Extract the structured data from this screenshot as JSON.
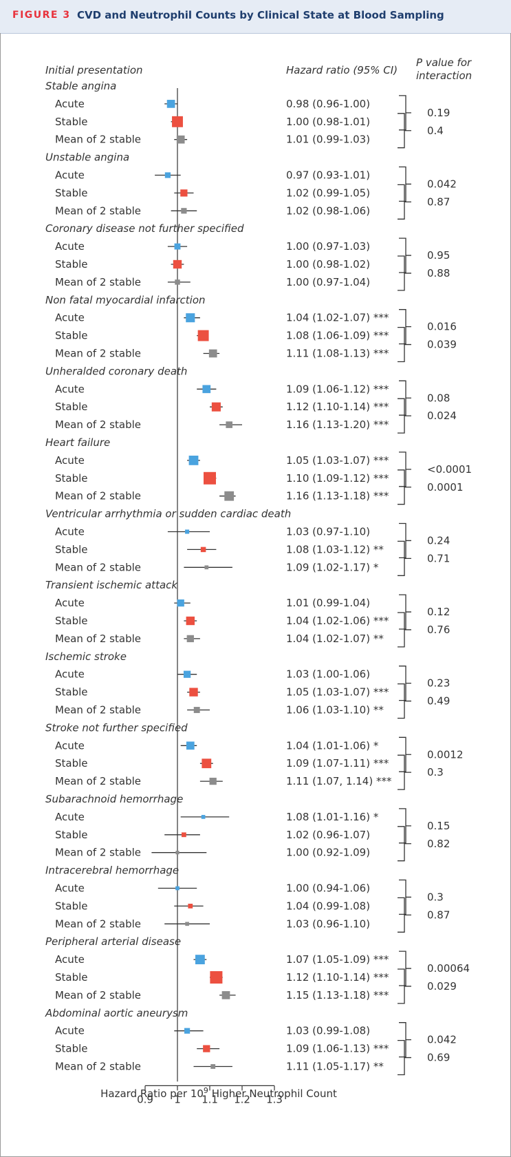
{
  "figure": {
    "label": "FIGURE 3",
    "title": "CVD and Neutrophil Counts by Clinical State at Blood Sampling"
  },
  "colors": {
    "acute": "#4aa3df",
    "stable": "#ec5040",
    "mean": "#8c8c8c",
    "line": "#333333",
    "header_bg": "#e6ecf5",
    "label_red": "#e8323c",
    "title_blue": "#1f3e6e"
  },
  "chart_data": {
    "type": "forest",
    "title": "CVD and Neutrophil Counts by Clinical State at Blood Sampling",
    "xlabel_prefix": "Hazard Ratio per 10",
    "xlabel_sup": "9",
    "xlabel_suffix": " Higher Neutrophil Count",
    "xlim": [
      0.9,
      1.3
    ],
    "reference_line": 1.0,
    "xticks": [
      0.9,
      1,
      1.1,
      1.2,
      1.3
    ],
    "xtick_labels": [
      "0.9",
      "1",
      "1.1",
      "1.2",
      "1.3"
    ],
    "column_headers": {
      "presentation": "Initial presentation",
      "hr": "Hazard ratio (95% CI)",
      "p_line1": "P value for",
      "p_line2": "interaction"
    },
    "groups": [
      {
        "name": "Stable angina",
        "rows": [
          {
            "label": "Acute",
            "state": "acute",
            "hr": 0.98,
            "lo": 0.96,
            "hi": 1.0,
            "text": "0.98 (0.96-1.00)",
            "weight": 0.55
          },
          {
            "label": "Stable",
            "state": "stable",
            "hr": 1.0,
            "lo": 0.98,
            "hi": 1.01,
            "text": "1.00 (0.98-1.01)",
            "weight": 0.85
          },
          {
            "label": "Mean of 2 stable",
            "state": "mean",
            "hr": 1.01,
            "lo": 0.99,
            "hi": 1.03,
            "text": "1.01 (0.99-1.03)",
            "weight": 0.55
          }
        ],
        "p_values": [
          "0.19",
          "0.4"
        ]
      },
      {
        "name": "Unstable angina",
        "rows": [
          {
            "label": "Acute",
            "state": "acute",
            "hr": 0.97,
            "lo": 0.93,
            "hi": 1.01,
            "text": "0.97 (0.93-1.01)",
            "weight": 0.3
          },
          {
            "label": "Stable",
            "state": "stable",
            "hr": 1.02,
            "lo": 0.99,
            "hi": 1.05,
            "text": "1.02 (0.99-1.05)",
            "weight": 0.45
          },
          {
            "label": "Mean of 2 stable",
            "state": "mean",
            "hr": 1.02,
            "lo": 0.98,
            "hi": 1.06,
            "text": "1.02 (0.98-1.06)",
            "weight": 0.3
          }
        ],
        "p_values": [
          "0.042",
          "0.87"
        ]
      },
      {
        "name": "Coronary disease not further specified",
        "rows": [
          {
            "label": "Acute",
            "state": "acute",
            "hr": 1.0,
            "lo": 0.97,
            "hi": 1.03,
            "text": "1.00 (0.97-1.03)",
            "weight": 0.35
          },
          {
            "label": "Stable",
            "state": "stable",
            "hr": 1.0,
            "lo": 0.98,
            "hi": 1.02,
            "text": "1.00 (0.98-1.02)",
            "weight": 0.6
          },
          {
            "label": "Mean of 2 stable",
            "state": "mean",
            "hr": 1.0,
            "lo": 0.97,
            "hi": 1.04,
            "text": "1.00 (0.97-1.04)",
            "weight": 0.25
          }
        ],
        "p_values": [
          "0.95",
          "0.88"
        ]
      },
      {
        "name": "Non fatal myocardial infarction",
        "rows": [
          {
            "label": "Acute",
            "state": "acute",
            "hr": 1.04,
            "lo": 1.02,
            "hi": 1.07,
            "text": "1.04 (1.02-1.07) ***",
            "weight": 0.65
          },
          {
            "label": "Stable",
            "state": "stable",
            "hr": 1.08,
            "lo": 1.06,
            "hi": 1.09,
            "text": "1.08 (1.06-1.09) ***",
            "weight": 0.85
          },
          {
            "label": "Mean of 2 stable",
            "state": "mean",
            "hr": 1.11,
            "lo": 1.08,
            "hi": 1.13,
            "text": "1.11 (1.08-1.13) ***",
            "weight": 0.55
          }
        ],
        "p_values": [
          "0.016",
          "0.039"
        ]
      },
      {
        "name": "Unheralded coronary death",
        "rows": [
          {
            "label": "Acute",
            "state": "acute",
            "hr": 1.09,
            "lo": 1.06,
            "hi": 1.12,
            "text": "1.09 (1.06-1.12) ***",
            "weight": 0.55
          },
          {
            "label": "Stable",
            "state": "stable",
            "hr": 1.12,
            "lo": 1.1,
            "hi": 1.14,
            "text": "1.12 (1.10-1.14) ***",
            "weight": 0.65
          },
          {
            "label": "Mean of 2 stable",
            "state": "mean",
            "hr": 1.16,
            "lo": 1.13,
            "hi": 1.2,
            "text": "1.16 (1.13-1.20) ***",
            "weight": 0.4
          }
        ],
        "p_values": [
          "0.08",
          "0.024"
        ]
      },
      {
        "name": "Heart failure",
        "rows": [
          {
            "label": "Acute",
            "state": "acute",
            "hr": 1.05,
            "lo": 1.03,
            "hi": 1.07,
            "text": "1.05 (1.03-1.07) ***",
            "weight": 0.7
          },
          {
            "label": "Stable",
            "state": "stable",
            "hr": 1.1,
            "lo": 1.09,
            "hi": 1.12,
            "text": "1.10 (1.09-1.12) ***",
            "weight": 1.0
          },
          {
            "label": "Mean of 2 stable",
            "state": "mean",
            "hr": 1.16,
            "lo": 1.13,
            "hi": 1.18,
            "text": "1.16 (1.13-1.18) ***",
            "weight": 0.7
          }
        ],
        "p_values": [
          "<0.0001",
          "0.0001"
        ]
      },
      {
        "name": "Ventricular arrhythmia or sudden cardiac death",
        "rows": [
          {
            "label": "Acute",
            "state": "acute",
            "hr": 1.03,
            "lo": 0.97,
            "hi": 1.1,
            "text": "1.03 (0.97-1.10)",
            "weight": 0.15
          },
          {
            "label": "Stable",
            "state": "stable",
            "hr": 1.08,
            "lo": 1.03,
            "hi": 1.12,
            "text": "1.08 (1.03-1.12) **",
            "weight": 0.25
          },
          {
            "label": "Mean of 2 stable",
            "state": "mean",
            "hr": 1.09,
            "lo": 1.02,
            "hi": 1.17,
            "text": "1.09 (1.02-1.17) *",
            "weight": 0.12
          }
        ],
        "p_values": [
          "0.24",
          "0.71"
        ]
      },
      {
        "name": "Transient ischemic attack",
        "rows": [
          {
            "label": "Acute",
            "state": "acute",
            "hr": 1.01,
            "lo": 0.99,
            "hi": 1.04,
            "text": "1.01 (0.99-1.04)",
            "weight": 0.45
          },
          {
            "label": "Stable",
            "state": "stable",
            "hr": 1.04,
            "lo": 1.02,
            "hi": 1.06,
            "text": "1.04 (1.02-1.06) ***",
            "weight": 0.6
          },
          {
            "label": "Mean of 2 stable",
            "state": "mean",
            "hr": 1.04,
            "lo": 1.02,
            "hi": 1.07,
            "text": "1.04 (1.02-1.07) **",
            "weight": 0.45
          }
        ],
        "p_values": [
          "0.12",
          "0.76"
        ]
      },
      {
        "name": "Ischemic stroke",
        "rows": [
          {
            "label": "Acute",
            "state": "acute",
            "hr": 1.03,
            "lo": 1.0,
            "hi": 1.06,
            "text": "1.03 (1.00-1.06)",
            "weight": 0.45
          },
          {
            "label": "Stable",
            "state": "stable",
            "hr": 1.05,
            "lo": 1.03,
            "hi": 1.07,
            "text": "1.05 (1.03-1.07) ***",
            "weight": 0.6
          },
          {
            "label": "Mean of 2 stable",
            "state": "mean",
            "hr": 1.06,
            "lo": 1.03,
            "hi": 1.1,
            "text": "1.06 (1.03-1.10) **",
            "weight": 0.35
          }
        ],
        "p_values": [
          "0.23",
          "0.49"
        ]
      },
      {
        "name": "Stroke not further specified",
        "rows": [
          {
            "label": "Acute",
            "state": "acute",
            "hr": 1.04,
            "lo": 1.01,
            "hi": 1.06,
            "text": "1.04 (1.01-1.06) *",
            "weight": 0.55
          },
          {
            "label": "Stable",
            "state": "stable",
            "hr": 1.09,
            "lo": 1.07,
            "hi": 1.11,
            "text": "1.09 (1.07-1.11) ***",
            "weight": 0.7
          },
          {
            "label": "Mean of 2 stable",
            "state": "mean",
            "hr": 1.11,
            "lo": 1.07,
            "hi": 1.14,
            "text": "1.11 (1.07, 1.14) ***",
            "weight": 0.45
          }
        ],
        "p_values": [
          "0.0012",
          "0.3"
        ]
      },
      {
        "name": "Subarachnoid hemorrhage",
        "rows": [
          {
            "label": "Acute",
            "state": "acute",
            "hr": 1.08,
            "lo": 1.01,
            "hi": 1.16,
            "text": "1.08 (1.01-1.16) *",
            "weight": 0.12
          },
          {
            "label": "Stable",
            "state": "stable",
            "hr": 1.02,
            "lo": 0.96,
            "hi": 1.07,
            "text": "1.02 (0.96-1.07)",
            "weight": 0.2
          },
          {
            "label": "Mean of 2 stable",
            "state": "mean",
            "hr": 1.0,
            "lo": 0.92,
            "hi": 1.09,
            "text": "1.00 (0.92-1.09)",
            "weight": 0.08
          }
        ],
        "p_values": [
          "0.15",
          "0.82"
        ]
      },
      {
        "name": "Intracerebral hemorrhage",
        "rows": [
          {
            "label": "Acute",
            "state": "acute",
            "hr": 1.0,
            "lo": 0.94,
            "hi": 1.06,
            "text": "1.00 (0.94-1.06)",
            "weight": 0.12
          },
          {
            "label": "Stable",
            "state": "stable",
            "hr": 1.04,
            "lo": 0.99,
            "hi": 1.08,
            "text": "1.04 (0.99-1.08)",
            "weight": 0.2
          },
          {
            "label": "Mean of 2 stable",
            "state": "mean",
            "hr": 1.03,
            "lo": 0.96,
            "hi": 1.1,
            "text": "1.03 (0.96-1.10)",
            "weight": 0.12
          }
        ],
        "p_values": [
          "0.3",
          "0.87"
        ]
      },
      {
        "name": "Peripheral arterial disease",
        "rows": [
          {
            "label": "Acute",
            "state": "acute",
            "hr": 1.07,
            "lo": 1.05,
            "hi": 1.09,
            "text": "1.07 (1.05-1.09) ***",
            "weight": 0.7
          },
          {
            "label": "Stable",
            "state": "stable",
            "hr": 1.12,
            "lo": 1.1,
            "hi": 1.14,
            "text": "1.12 (1.10-1.14) ***",
            "weight": 1.0
          },
          {
            "label": "Mean of 2 stable",
            "state": "mean",
            "hr": 1.15,
            "lo": 1.13,
            "hi": 1.18,
            "text": "1.15 (1.13-1.18) ***",
            "weight": 0.55
          }
        ],
        "p_values": [
          "0.00064",
          "0.029"
        ]
      },
      {
        "name": "Abdominal aortic aneurysm",
        "rows": [
          {
            "label": "Acute",
            "state": "acute",
            "hr": 1.03,
            "lo": 0.99,
            "hi": 1.08,
            "text": "1.03 (0.99-1.08)",
            "weight": 0.3
          },
          {
            "label": "Stable",
            "state": "stable",
            "hr": 1.09,
            "lo": 1.06,
            "hi": 1.13,
            "text": "1.09 (1.06-1.13) ***",
            "weight": 0.45
          },
          {
            "label": "Mean of 2 stable",
            "state": "mean",
            "hr": 1.11,
            "lo": 1.05,
            "hi": 1.17,
            "text": "1.11 (1.05-1.17) **",
            "weight": 0.2
          }
        ],
        "p_values": [
          "0.042",
          "0.69"
        ]
      }
    ]
  }
}
